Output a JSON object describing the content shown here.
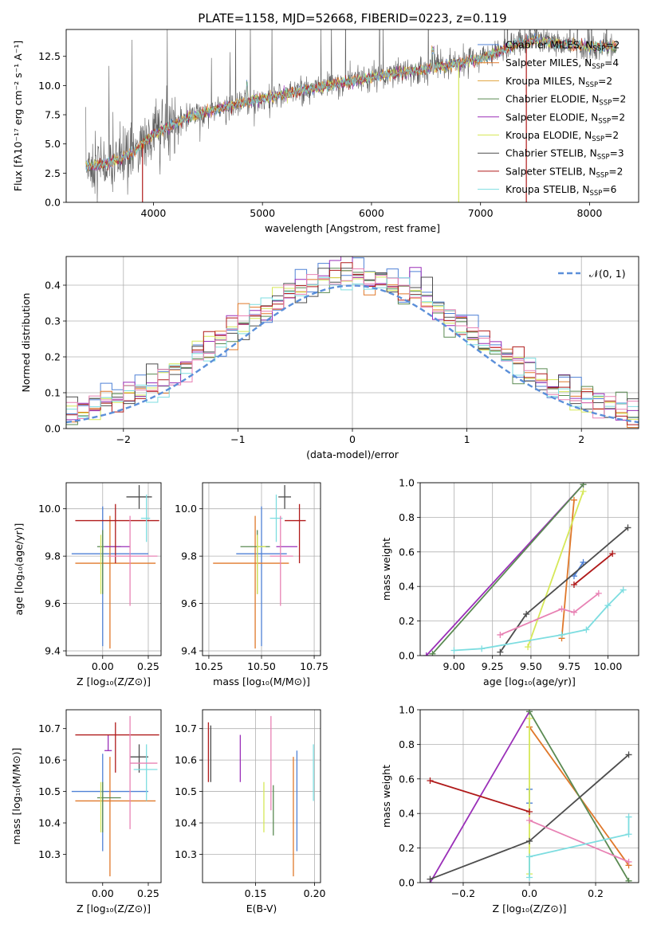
{
  "colors": {
    "Chabrier MILES": "#4f81d6",
    "Salpeter MILES": "#e0782a",
    "Kroupa MILES": "#e0a23a",
    "Chabrier ELODIE": "#5a8a52",
    "Salpeter ELODIE": "#9a2fb8",
    "Kroupa ELODIE": "#d6e858",
    "Chabrier STELIB": "#4d4d4d",
    "Salpeter STELIB": "#b01a1a",
    "Kroupa STELIB": "#7ddde0",
    "pink": "#e882b4",
    "normal": "#5b8fd9"
  },
  "chart_data": [
    {
      "id": "spectrum",
      "type": "line",
      "title": "PLATE=1158, MJD=52668, FIBERID=0223, z=0.119",
      "xlabel": "wavelength [Angstrom, rest frame]",
      "ylabel": "Flux [fλ10⁻¹⁷ erg cm⁻² s⁻¹ A⁻¹]",
      "xlim": [
        3200,
        8450
      ],
      "ylim": [
        0,
        14.8
      ],
      "xticks": [
        4000,
        5000,
        6000,
        7000,
        8000
      ],
      "yticks": [
        0.0,
        2.5,
        5.0,
        7.5,
        10.0,
        12.5
      ],
      "legend_position": "top-right",
      "legend": [
        {
          "label": "Chabrier MILES, N",
          "sub": "SSP",
          "suffix": "=2",
          "color": "#4f81d6"
        },
        {
          "label": "Salpeter MILES, N",
          "sub": "SSP",
          "suffix": "=4",
          "color": "#e0782a"
        },
        {
          "label": "Kroupa MILES, N",
          "sub": "SSP",
          "suffix": "=2",
          "color": "#e0a23a"
        },
        {
          "label": "Chabrier ELODIE, N",
          "sub": "SSP",
          "suffix": "=2",
          "color": "#5a8a52"
        },
        {
          "label": "Salpeter ELODIE, N",
          "sub": "SSP",
          "suffix": "=2",
          "color": "#9a2fb8"
        },
        {
          "label": "Kroupa ELODIE, N",
          "sub": "SSP",
          "suffix": "=2",
          "color": "#d6e858"
        },
        {
          "label": "Chabrier STELIB, N",
          "sub": "SSP",
          "suffix": "=3",
          "color": "#4d4d4d"
        },
        {
          "label": "Salpeter STELIB, N",
          "sub": "SSP",
          "suffix": "=2",
          "color": "#b01a1a"
        },
        {
          "label": "Kroupa STELIB, N",
          "sub": "SSP",
          "suffix": "=6",
          "color": "#7ddde0"
        }
      ],
      "continuum": [
        [
          3380,
          3.1
        ],
        [
          3600,
          3.3
        ],
        [
          3800,
          4.2
        ],
        [
          4000,
          5.8
        ],
        [
          4300,
          7.2
        ],
        [
          4600,
          8.0
        ],
        [
          5000,
          8.9
        ],
        [
          5500,
          9.8
        ],
        [
          6000,
          10.7
        ],
        [
          6500,
          11.4
        ],
        [
          7000,
          12.3
        ],
        [
          7300,
          13.4
        ],
        [
          7500,
          13.9
        ],
        [
          7800,
          13.5
        ],
        [
          8000,
          13.3
        ],
        [
          8250,
          13.4
        ]
      ],
      "drop_lines": [
        {
          "x": 6800,
          "color": "#d6e858"
        },
        {
          "x": 7420,
          "color": "#b01a1a"
        },
        {
          "x": 3900,
          "color": "#b01a1a"
        }
      ]
    },
    {
      "id": "residuals",
      "type": "histogram",
      "xlabel": "(data-model)/error",
      "ylabel": "Normed distribution",
      "xlim": [
        -2.5,
        2.5
      ],
      "ylim": [
        0,
        0.48
      ],
      "xticks": [
        -2,
        -1,
        0,
        1,
        2
      ],
      "yticks": [
        0.0,
        0.1,
        0.2,
        0.3,
        0.4
      ],
      "legend": [
        {
          "label": "𝒩(0, 1)",
          "color": "#5b8fd9",
          "style": "dashed"
        }
      ],
      "legend_position": "top-right",
      "bin_width": 0.1,
      "bin_start": -2.5
    },
    {
      "id": "age_vs_Z",
      "type": "errorbar",
      "xlabel": "Z [log₁₀(Z/Z⊙)]",
      "ylabel": "age  [log₁₀(age/yr)]",
      "xlim": [
        -0.2,
        0.32
      ],
      "ylim": [
        9.38,
        10.11
      ],
      "xticks": [
        0.0,
        0.25
      ],
      "yticks": [
        9.4,
        9.6,
        9.8,
        10.0
      ],
      "points": [
        {
          "x": 0.0,
          "y": 9.81,
          "xerr": [
            0.17,
            0.25
          ],
          "yerr": [
            0.39,
            0.2
          ],
          "color": "#4f81d6"
        },
        {
          "x": 0.04,
          "y": 9.77,
          "xerr": [
            0.19,
            0.25
          ],
          "yerr": [
            0.36,
            0.2
          ],
          "color": "#e0782a"
        },
        {
          "x": 0.0,
          "y": 9.84,
          "xerr": [
            0.03,
            0.1
          ],
          "yerr": [
            0.2,
            0.07
          ],
          "color": "#5a8a52"
        },
        {
          "x": 0.03,
          "y": 9.84,
          "xerr": [
            0.02,
            0.12
          ],
          "yerr": [
            0.0,
            0.0
          ],
          "color": "#9a2fb8"
        },
        {
          "x": -0.01,
          "y": 9.84,
          "xerr": [
            0.0,
            0.0
          ],
          "yerr": [
            0.2,
            0.05
          ],
          "color": "#d6e858"
        },
        {
          "x": 0.2,
          "y": 10.05,
          "xerr": [
            0.07,
            0.07
          ],
          "yerr": [
            0.05,
            0.05
          ],
          "color": "#4d4d4d"
        },
        {
          "x": 0.07,
          "y": 9.95,
          "xerr": [
            0.22,
            0.24
          ],
          "yerr": [
            0.18,
            0.07
          ],
          "color": "#b01a1a"
        },
        {
          "x": 0.24,
          "y": 9.96,
          "xerr": [
            0.03,
            0.02
          ],
          "yerr": [
            0.1,
            0.1
          ],
          "color": "#7ddde0"
        },
        {
          "x": 0.15,
          "y": 9.8,
          "xerr": [
            0.12,
            0.15
          ],
          "yerr": [
            0.21,
            0.17
          ],
          "color": "#e882b4"
        }
      ]
    },
    {
      "id": "age_vs_mass",
      "type": "errorbar",
      "xlabel": "mass [log₁₀(M/M⊙)]",
      "ylabel": "",
      "xlim": [
        10.22,
        10.78
      ],
      "ylim": [
        9.38,
        10.11
      ],
      "xticks": [
        10.25,
        10.5,
        10.75
      ],
      "yticks": [
        9.4,
        9.6,
        9.8,
        10.0
      ],
      "points": [
        {
          "x": 10.5,
          "y": 9.81,
          "xerr": [
            0.12,
            0.12
          ],
          "yerr": [
            0.39,
            0.2
          ],
          "color": "#4f81d6"
        },
        {
          "x": 10.47,
          "y": 9.77,
          "xerr": [
            0.2,
            0.16
          ],
          "yerr": [
            0.36,
            0.2
          ],
          "color": "#e0782a"
        },
        {
          "x": 10.48,
          "y": 9.84,
          "xerr": [
            0.08,
            0.06
          ],
          "yerr": [
            0.2,
            0.07
          ],
          "color": "#5a8a52"
        },
        {
          "x": 10.63,
          "y": 9.84,
          "xerr": [
            0.06,
            0.04
          ],
          "yerr": [
            0.0,
            0.0
          ],
          "color": "#9a2fb8"
        },
        {
          "x": 10.48,
          "y": 9.84,
          "xerr": [
            0.0,
            0.04
          ],
          "yerr": [
            0.2,
            0.05
          ],
          "color": "#d6e858"
        },
        {
          "x": 10.61,
          "y": 10.05,
          "xerr": [
            0.03,
            0.03
          ],
          "yerr": [
            0.05,
            0.05
          ],
          "color": "#4d4d4d"
        },
        {
          "x": 10.68,
          "y": 9.95,
          "xerr": [
            0.07,
            0.03
          ],
          "yerr": [
            0.18,
            0.07
          ],
          "color": "#b01a1a"
        },
        {
          "x": 10.57,
          "y": 9.96,
          "xerr": [
            0.03,
            0.03
          ],
          "yerr": [
            0.1,
            0.1
          ],
          "color": "#7ddde0"
        },
        {
          "x": 10.59,
          "y": 9.8,
          "xerr": [
            0.05,
            0.06
          ],
          "yerr": [
            0.21,
            0.17
          ],
          "color": "#e882b4"
        }
      ]
    },
    {
      "id": "weight_vs_age",
      "type": "line",
      "xlabel": "age  [log₁₀(age/yr)]",
      "ylabel": "mass weight",
      "xlim": [
        8.78,
        10.2
      ],
      "ylim": [
        0,
        1.0
      ],
      "xticks": [
        9.0,
        9.25,
        9.5,
        9.75,
        10.0
      ],
      "yticks": [
        0.0,
        0.2,
        0.4,
        0.6,
        0.8,
        1.0
      ],
      "series": [
        {
          "color": "#4f81d6",
          "points": [
            [
              9.78,
              0.46
            ],
            [
              9.84,
              0.54
            ]
          ]
        },
        {
          "color": "#e0782a",
          "points": [
            [
              9.7,
              0.1
            ],
            [
              9.78,
              0.9
            ]
          ]
        },
        {
          "color": "#9a2fb8",
          "points": [
            [
              8.82,
              0.0
            ],
            [
              9.84,
              0.99
            ]
          ]
        },
        {
          "color": "#5a8a52",
          "points": [
            [
              8.86,
              0.01
            ],
            [
              9.84,
              0.99
            ]
          ]
        },
        {
          "color": "#d6e858",
          "points": [
            [
              9.48,
              0.05
            ],
            [
              9.84,
              0.95
            ]
          ]
        },
        {
          "color": "#4d4d4d",
          "points": [
            [
              9.3,
              0.02
            ],
            [
              9.47,
              0.24
            ],
            [
              10.13,
              0.74
            ]
          ]
        },
        {
          "color": "#b01a1a",
          "points": [
            [
              9.78,
              0.41
            ],
            [
              10.03,
              0.59
            ]
          ]
        },
        {
          "color": "#e882b4",
          "points": [
            [
              9.3,
              0.12
            ],
            [
              9.7,
              0.27
            ],
            [
              9.78,
              0.25
            ],
            [
              9.94,
              0.36
            ]
          ]
        },
        {
          "color": "#7ddde0",
          "points": [
            [
              9.0,
              0.03
            ],
            [
              9.18,
              0.04
            ],
            [
              9.7,
              0.12
            ],
            [
              9.86,
              0.15
            ],
            [
              10.0,
              0.29
            ],
            [
              10.1,
              0.38
            ]
          ]
        }
      ]
    },
    {
      "id": "mass_vs_Z",
      "type": "errorbar",
      "xlabel": "Z [log₁₀(Z/Z⊙)]",
      "ylabel": "mass [log₁₀(M/M⊙)]",
      "xlim": [
        -0.2,
        0.32
      ],
      "ylim": [
        10.21,
        10.76
      ],
      "xticks": [
        0.0,
        0.25
      ],
      "yticks": [
        10.3,
        10.4,
        10.5,
        10.6,
        10.7
      ],
      "points": [
        {
          "x": 0.0,
          "y": 10.5,
          "xerr": [
            0.17,
            0.25
          ],
          "yerr": [
            0.19,
            0.12
          ],
          "color": "#4f81d6"
        },
        {
          "x": 0.04,
          "y": 10.47,
          "xerr": [
            0.19,
            0.25
          ],
          "yerr": [
            0.24,
            0.14
          ],
          "color": "#e0782a"
        },
        {
          "x": 0.0,
          "y": 10.48,
          "xerr": [
            0.03,
            0.1
          ],
          "yerr": [
            0.11,
            0.05
          ],
          "color": "#5a8a52"
        },
        {
          "x": 0.03,
          "y": 10.63,
          "xerr": [
            0.02,
            0.02
          ],
          "yerr": [
            0.0,
            0.05
          ],
          "color": "#9a2fb8"
        },
        {
          "x": -0.01,
          "y": 10.48,
          "xerr": [
            0.0,
            0.0
          ],
          "yerr": [
            0.11,
            0.05
          ],
          "color": "#d6e858"
        },
        {
          "x": 0.2,
          "y": 10.61,
          "xerr": [
            0.05,
            0.05
          ],
          "yerr": [
            0.05,
            0.04
          ],
          "color": "#4d4d4d"
        },
        {
          "x": 0.07,
          "y": 10.68,
          "xerr": [
            0.22,
            0.24
          ],
          "yerr": [
            0.12,
            0.04
          ],
          "color": "#b01a1a"
        },
        {
          "x": 0.24,
          "y": 10.57,
          "xerr": [
            0.07,
            0.06
          ],
          "yerr": [
            0.1,
            0.08
          ],
          "color": "#7ddde0"
        },
        {
          "x": 0.15,
          "y": 10.59,
          "xerr": [
            0.0,
            0.15
          ],
          "yerr": [
            0.21,
            0.15
          ],
          "color": "#e882b4"
        }
      ]
    },
    {
      "id": "mass_vs_EBV",
      "type": "errorbar",
      "xlabel": "E(B-V)",
      "ylabel": "",
      "xlim": [
        0.105,
        0.205
      ],
      "ylim": [
        10.21,
        10.76
      ],
      "xticks": [
        0.15,
        0.2
      ],
      "yticks": [
        10.3,
        10.4,
        10.5,
        10.6,
        10.7
      ],
      "points": [
        {
          "x": 0.11,
          "y": 10.63,
          "xerr": [
            0,
            0
          ],
          "yerr": [
            0.1,
            0.09
          ],
          "color": "#b01a1a"
        },
        {
          "x": 0.112,
          "y": 10.62,
          "xerr": [
            0,
            0
          ],
          "yerr": [
            0.09,
            0.09
          ],
          "color": "#4d4d4d"
        },
        {
          "x": 0.137,
          "y": 10.61,
          "xerr": [
            0,
            0
          ],
          "yerr": [
            0.08,
            0.07
          ],
          "color": "#9a2fb8"
        },
        {
          "x": 0.157,
          "y": 10.45,
          "xerr": [
            0,
            0
          ],
          "yerr": [
            0.08,
            0.08
          ],
          "color": "#d6e858"
        },
        {
          "x": 0.163,
          "y": 10.56,
          "xerr": [
            0,
            0
          ],
          "yerr": [
            0.12,
            0.18
          ],
          "color": "#e882b4"
        },
        {
          "x": 0.165,
          "y": 10.44,
          "xerr": [
            0,
            0
          ],
          "yerr": [
            0.08,
            0.08
          ],
          "color": "#5a8a52"
        },
        {
          "x": 0.182,
          "y": 10.42,
          "xerr": [
            0,
            0
          ],
          "yerr": [
            0.19,
            0.19
          ],
          "color": "#e0782a"
        },
        {
          "x": 0.185,
          "y": 10.47,
          "xerr": [
            0,
            0
          ],
          "yerr": [
            0.16,
            0.16
          ],
          "color": "#4f81d6"
        },
        {
          "x": 0.199,
          "y": 10.56,
          "xerr": [
            0,
            0
          ],
          "yerr": [
            0.09,
            0.09
          ],
          "color": "#7ddde0"
        }
      ]
    },
    {
      "id": "weight_vs_Z",
      "type": "line",
      "xlabel": "Z [log₁₀(Z/Z⊙)]",
      "ylabel": "mass weight",
      "xlim": [
        -0.33,
        0.33
      ],
      "ylim": [
        0,
        1.0
      ],
      "xticks": [
        -0.2,
        0.0,
        0.2
      ],
      "yticks": [
        0.0,
        0.2,
        0.4,
        0.6,
        0.8,
        1.0
      ],
      "series": [
        {
          "color": "#4f81d6",
          "points": [
            [
              0.0,
              0.46
            ],
            [
              0.0,
              0.54
            ]
          ]
        },
        {
          "color": "#e0782a",
          "points": [
            [
              0.0,
              0.9
            ],
            [
              0.3,
              0.1
            ]
          ]
        },
        {
          "color": "#9a2fb8",
          "points": [
            [
              -0.3,
              0.0
            ],
            [
              0.0,
              0.99
            ]
          ]
        },
        {
          "color": "#5a8a52",
          "points": [
            [
              0.0,
              0.99
            ],
            [
              0.3,
              0.01
            ]
          ]
        },
        {
          "color": "#d6e858",
          "points": [
            [
              0.0,
              0.05
            ],
            [
              0.0,
              0.95
            ]
          ]
        },
        {
          "color": "#4d4d4d",
          "points": [
            [
              -0.3,
              0.02
            ],
            [
              0.0,
              0.24
            ],
            [
              0.3,
              0.74
            ]
          ]
        },
        {
          "color": "#b01a1a",
          "points": [
            [
              -0.3,
              0.59
            ],
            [
              0.0,
              0.41
            ]
          ]
        },
        {
          "color": "#e882b4",
          "points": [
            [
              0.0,
              0.36
            ],
            [
              0.3,
              0.12
            ]
          ]
        },
        {
          "color": "#7ddde0",
          "points": [
            [
              0.0,
              0.03
            ],
            [
              0.0,
              0.15
            ],
            [
              0.3,
              0.28
            ],
            [
              0.3,
              0.38
            ]
          ]
        }
      ]
    }
  ]
}
